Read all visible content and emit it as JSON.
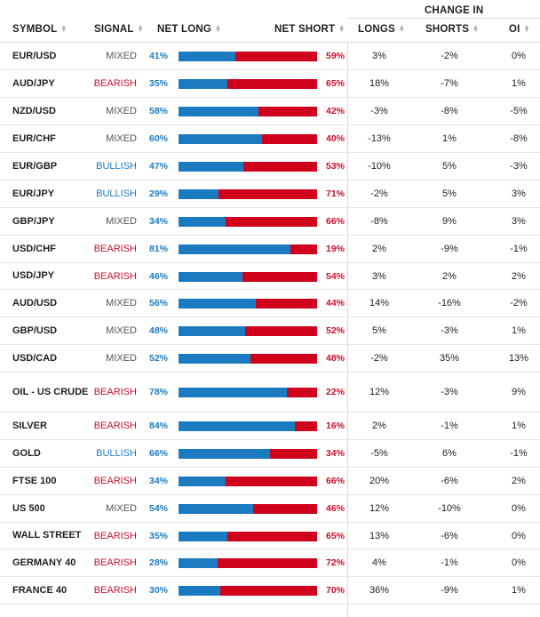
{
  "header": {
    "symbol": "SYMBOL",
    "signal": "SIGNAL",
    "net_long": "NET LONG",
    "net_short": "NET SHORT",
    "change_in": "CHANGE IN",
    "longs": "LONGS",
    "shorts": "SHORTS",
    "oi": "OI",
    "sort_icon": "sort-icon"
  },
  "colors": {
    "long": "#1c7bc0",
    "short": "#d0021b",
    "bearish": "#c8102e",
    "bullish": "#1c7bc0",
    "mixed": "#555555"
  },
  "rows": [
    {
      "symbol": "EUR/USD",
      "signal": "MIXED",
      "net_long": "41%",
      "net_short": "59%",
      "long_pct": 41,
      "longs": "3%",
      "shorts": "-2%",
      "oi": "0%"
    },
    {
      "symbol": "AUD/JPY",
      "signal": "BEARISH",
      "net_long": "35%",
      "net_short": "65%",
      "long_pct": 35,
      "longs": "18%",
      "shorts": "-7%",
      "oi": "1%"
    },
    {
      "symbol": "NZD/USD",
      "signal": "MIXED",
      "net_long": "58%",
      "net_short": "42%",
      "long_pct": 58,
      "longs": "-3%",
      "shorts": "-8%",
      "oi": "-5%"
    },
    {
      "symbol": "EUR/CHF",
      "signal": "MIXED",
      "net_long": "60%",
      "net_short": "40%",
      "long_pct": 60,
      "longs": "-13%",
      "shorts": "1%",
      "oi": "-8%"
    },
    {
      "symbol": "EUR/GBP",
      "signal": "BULLISH",
      "net_long": "47%",
      "net_short": "53%",
      "long_pct": 47,
      "longs": "-10%",
      "shorts": "5%",
      "oi": "-3%"
    },
    {
      "symbol": "EUR/JPY",
      "signal": "BULLISH",
      "net_long": "29%",
      "net_short": "71%",
      "long_pct": 29,
      "longs": "-2%",
      "shorts": "5%",
      "oi": "3%"
    },
    {
      "symbol": "GBP/JPY",
      "signal": "MIXED",
      "net_long": "34%",
      "net_short": "66%",
      "long_pct": 34,
      "longs": "-8%",
      "shorts": "9%",
      "oi": "3%"
    },
    {
      "symbol": "USD/CHF",
      "signal": "BEARISH",
      "net_long": "81%",
      "net_short": "19%",
      "long_pct": 81,
      "longs": "2%",
      "shorts": "-9%",
      "oi": "-1%"
    },
    {
      "symbol": "USD/JPY",
      "signal": "BEARISH",
      "net_long": "46%",
      "net_short": "54%",
      "long_pct": 46,
      "longs": "3%",
      "shorts": "2%",
      "oi": "2%"
    },
    {
      "symbol": "AUD/USD",
      "signal": "MIXED",
      "net_long": "56%",
      "net_short": "44%",
      "long_pct": 56,
      "longs": "14%",
      "shorts": "-16%",
      "oi": "-2%"
    },
    {
      "symbol": "GBP/USD",
      "signal": "MIXED",
      "net_long": "48%",
      "net_short": "52%",
      "long_pct": 48,
      "longs": "5%",
      "shorts": "-3%",
      "oi": "1%"
    },
    {
      "symbol": "USD/CAD",
      "signal": "MIXED",
      "net_long": "52%",
      "net_short": "48%",
      "long_pct": 52,
      "longs": "-2%",
      "shorts": "35%",
      "oi": "13%"
    },
    {
      "symbol": "OIL - US CRUDE",
      "signal": "BEARISH",
      "net_long": "78%",
      "net_short": "22%",
      "long_pct": 78,
      "longs": "12%",
      "shorts": "-3%",
      "oi": "9%"
    },
    {
      "symbol": "SILVER",
      "signal": "BEARISH",
      "net_long": "84%",
      "net_short": "16%",
      "long_pct": 84,
      "longs": "2%",
      "shorts": "-1%",
      "oi": "1%"
    },
    {
      "symbol": "GOLD",
      "signal": "BULLISH",
      "net_long": "66%",
      "net_short": "34%",
      "long_pct": 66,
      "longs": "-5%",
      "shorts": "6%",
      "oi": "-1%"
    },
    {
      "symbol": "FTSE 100",
      "signal": "BEARISH",
      "net_long": "34%",
      "net_short": "66%",
      "long_pct": 34,
      "longs": "20%",
      "shorts": "-6%",
      "oi": "2%"
    },
    {
      "symbol": "US 500",
      "signal": "MIXED",
      "net_long": "54%",
      "net_short": "46%",
      "long_pct": 54,
      "longs": "12%",
      "shorts": "-10%",
      "oi": "0%"
    },
    {
      "symbol": "WALL STREET",
      "signal": "BEARISH",
      "net_long": "35%",
      "net_short": "65%",
      "long_pct": 35,
      "longs": "13%",
      "shorts": "-6%",
      "oi": "0%"
    },
    {
      "symbol": "GERMANY 40",
      "signal": "BEARISH",
      "net_long": "28%",
      "net_short": "72%",
      "long_pct": 28,
      "longs": "4%",
      "shorts": "-1%",
      "oi": "0%"
    },
    {
      "symbol": "FRANCE 40",
      "signal": "BEARISH",
      "net_long": "30%",
      "net_short": "70%",
      "long_pct": 30,
      "longs": "36%",
      "shorts": "-9%",
      "oi": "1%"
    }
  ]
}
